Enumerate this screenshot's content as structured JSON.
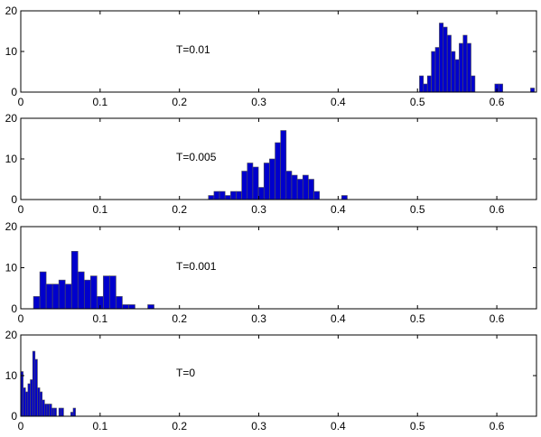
{
  "colors": {
    "bar_fill": "#0000cc",
    "bar_edge": "#555555",
    "axis": "#000000",
    "background": "#ffffff"
  },
  "chart_data": [
    {
      "type": "bar",
      "title": "",
      "xlabel": "",
      "ylabel": "",
      "annotation": "T=0.01",
      "xlim": [
        0,
        0.65
      ],
      "ylim": [
        0,
        20
      ],
      "xticks": [
        "0",
        "0.1",
        "0.2",
        "0.3",
        "0.4",
        "0.5",
        "0.6"
      ],
      "yticks": [
        "0",
        "10",
        "20"
      ],
      "grid": false,
      "bin_width": 0.005,
      "x": [
        0.505,
        0.51,
        0.515,
        0.52,
        0.525,
        0.53,
        0.535,
        0.54,
        0.545,
        0.55,
        0.555,
        0.56,
        0.565,
        0.57,
        0.6,
        0.605,
        0.645
      ],
      "values": [
        4,
        2,
        4,
        10,
        11,
        17,
        16,
        14,
        10,
        8,
        12,
        14,
        12,
        4,
        2,
        2,
        1
      ]
    },
    {
      "type": "bar",
      "title": "",
      "xlabel": "",
      "ylabel": "",
      "annotation": "T=0.005",
      "xlim": [
        0,
        0.65
      ],
      "ylim": [
        0,
        20
      ],
      "xticks": [
        "0",
        "0.1",
        "0.2",
        "0.3",
        "0.4",
        "0.5",
        "0.6"
      ],
      "yticks": [
        "0",
        "10",
        "20"
      ],
      "grid": false,
      "bin_width": 0.007,
      "x": [
        0.24,
        0.247,
        0.254,
        0.261,
        0.268,
        0.275,
        0.282,
        0.289,
        0.296,
        0.303,
        0.31,
        0.317,
        0.324,
        0.331,
        0.338,
        0.345,
        0.352,
        0.359,
        0.366,
        0.373,
        0.408
      ],
      "values": [
        1,
        2,
        2,
        1,
        2,
        2,
        7,
        9,
        8,
        3,
        9,
        10,
        14,
        17,
        7,
        6,
        5,
        6,
        5,
        2,
        1
      ]
    },
    {
      "type": "bar",
      "title": "",
      "xlabel": "",
      "ylabel": "",
      "annotation": "T=0.001",
      "xlim": [
        0,
        0.65
      ],
      "ylim": [
        0,
        20
      ],
      "xticks": [
        "0",
        "0.1",
        "0.2",
        "0.3",
        "0.4",
        "0.5",
        "0.6"
      ],
      "yticks": [
        "0",
        "10",
        "20"
      ],
      "grid": false,
      "bin_width": 0.008,
      "x": [
        0.02,
        0.028,
        0.036,
        0.044,
        0.052,
        0.06,
        0.068,
        0.076,
        0.084,
        0.092,
        0.1,
        0.108,
        0.116,
        0.124,
        0.132,
        0.14,
        0.148,
        0.164
      ],
      "values": [
        3,
        9,
        6,
        6,
        7,
        6,
        14,
        9,
        7,
        8,
        3,
        8,
        8,
        3,
        1,
        1,
        0,
        1
      ]
    },
    {
      "type": "bar",
      "title": "",
      "xlabel": "",
      "ylabel": "",
      "annotation": "T=0",
      "xlim": [
        0,
        0.65
      ],
      "ylim": [
        0,
        20
      ],
      "xticks": [
        "0",
        "0.1",
        "0.2",
        "0.3",
        "0.4",
        "0.5",
        "0.6"
      ],
      "yticks": [
        "0",
        "10",
        "20"
      ],
      "grid": false,
      "bin_width": 0.003,
      "x": [
        0.0015,
        0.0045,
        0.0075,
        0.0105,
        0.0135,
        0.0165,
        0.0195,
        0.0225,
        0.0255,
        0.0285,
        0.0315,
        0.0345,
        0.0375,
        0.0405,
        0.0435,
        0.0465,
        0.0495,
        0.0525,
        0.0555,
        0.0585,
        0.0615,
        0.0645,
        0.0675
      ],
      "values": [
        11,
        7,
        6,
        8,
        9,
        16,
        14,
        7,
        6,
        4,
        3,
        3,
        3,
        2,
        2,
        0,
        2,
        2,
        0,
        0,
        0,
        1,
        2
      ]
    }
  ]
}
